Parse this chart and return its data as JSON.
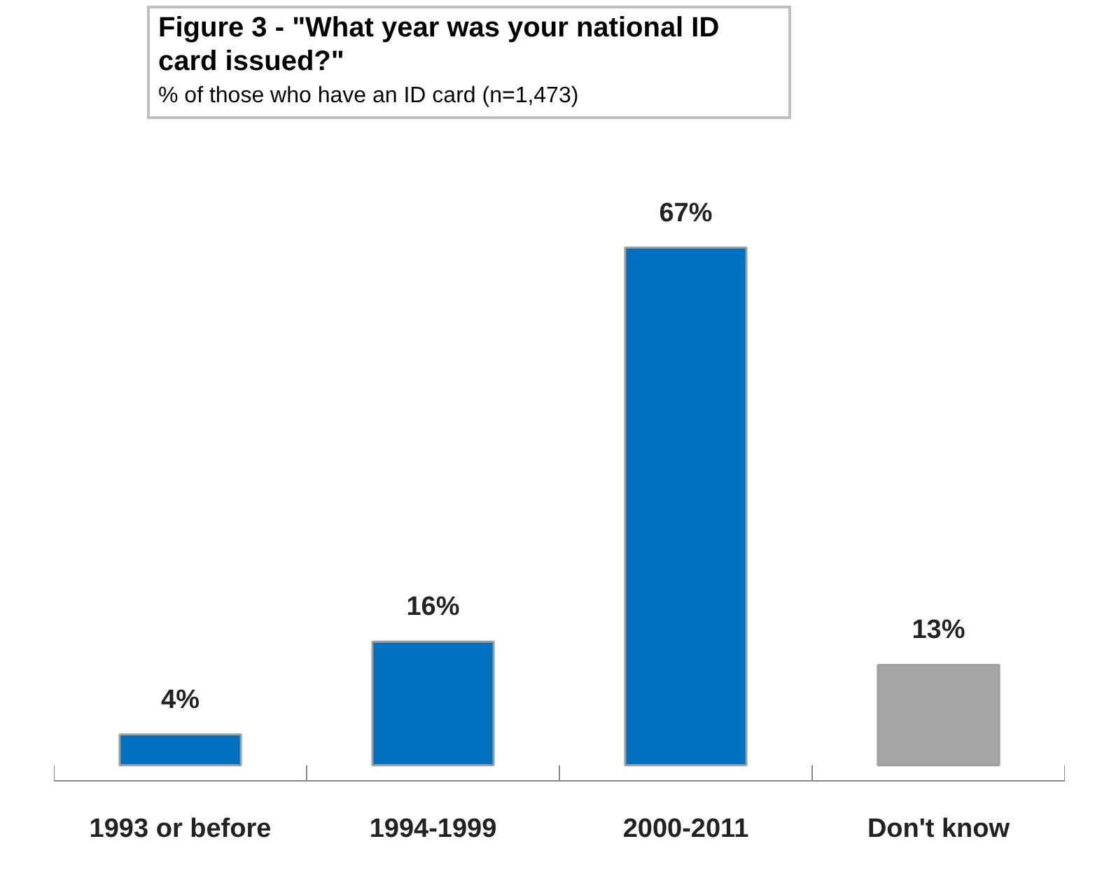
{
  "chart_data": {
    "type": "bar",
    "title": "Figure 3 - \"What year was your national ID card issued?\"",
    "subtitle": "% of those who have an ID card (n=1,473)",
    "categories": [
      "1993 or before",
      "1994-1999",
      "2000-2011",
      "Don't know"
    ],
    "values": [
      4,
      16,
      67,
      13
    ],
    "colors": [
      "#0070c0",
      "#0070c0",
      "#0070c0",
      "#a6a6a6"
    ],
    "value_labels": [
      "4%",
      "16%",
      "67%",
      "13%"
    ],
    "grid": false
  }
}
